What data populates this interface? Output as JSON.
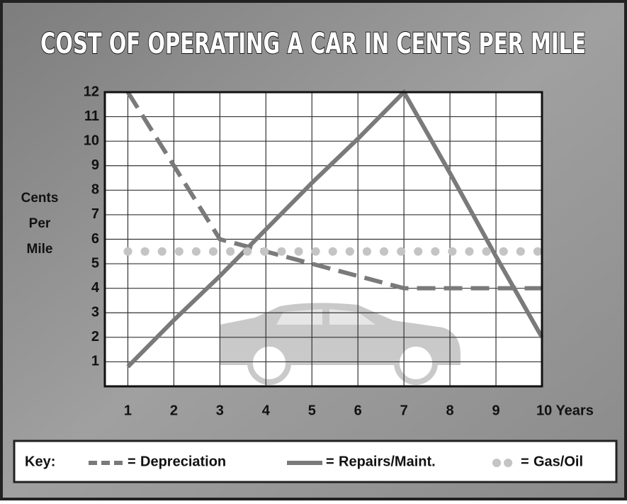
{
  "chart_data": {
    "type": "line",
    "title": "COST OF OPERATING A CAR  IN CENTS PER MILE",
    "ylabel": "Cents Per Mile",
    "x": [
      1,
      2,
      3,
      4,
      5,
      6,
      7,
      8,
      9,
      10
    ],
    "xlim": [
      0.5,
      10
    ],
    "xticks": [
      1,
      2,
      3,
      4,
      5,
      6,
      7,
      8,
      9,
      {
        "value": 10,
        "label": "10 Years"
      }
    ],
    "ylim": [
      0,
      12
    ],
    "yticks": [
      1,
      2,
      3,
      4,
      5,
      6,
      7,
      8,
      9,
      10,
      11,
      12
    ],
    "grid": true,
    "legend_title": "Key:",
    "legend_separator": "=",
    "series": [
      {
        "name": "Depreciation",
        "color": "#7a7a7a",
        "style": "dashed",
        "values": [
          12,
          9,
          6,
          5.5,
          5,
          4.5,
          4,
          4,
          4,
          4
        ]
      },
      {
        "name": "Repairs/Maint.",
        "color": "#7a7a7a",
        "style": "solid",
        "values": [
          0.8,
          2.7,
          4.5,
          6.4,
          8.3,
          10.1,
          12,
          8.7,
          5.3,
          2
        ]
      },
      {
        "name": "Gas/Oil",
        "color": "#c4c4c4",
        "style": "dotted",
        "values": [
          5.5,
          5.5,
          5.5,
          5.5,
          5.5,
          5.5,
          5.5,
          5.5,
          5.5,
          5.5
        ]
      }
    ]
  }
}
